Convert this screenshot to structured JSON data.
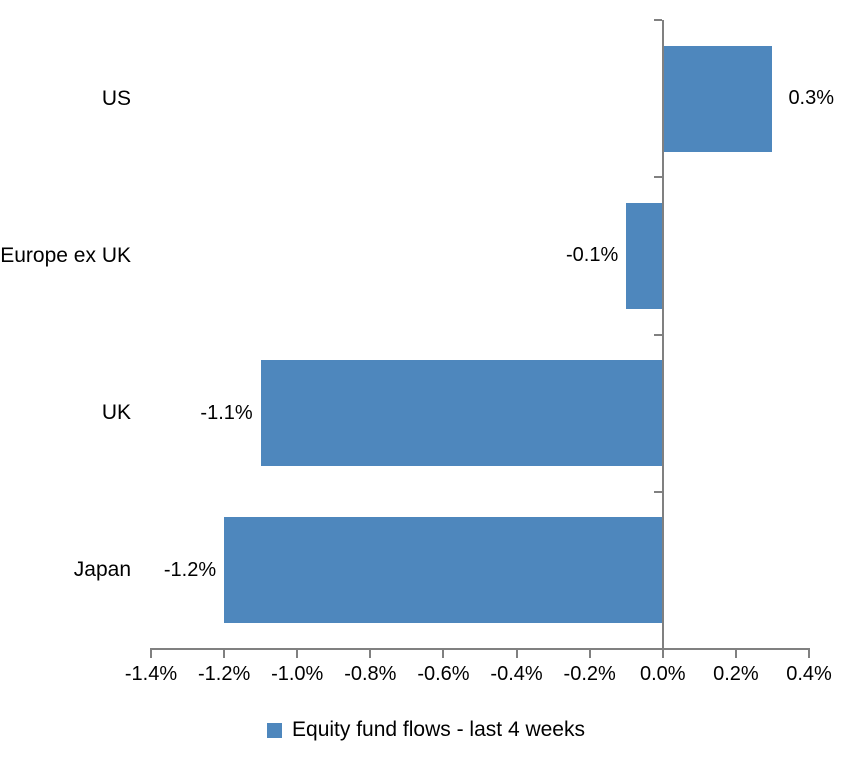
{
  "chart_data": {
    "type": "bar",
    "orientation": "horizontal",
    "title": "",
    "categories": [
      "US",
      "Europe ex UK",
      "UK",
      "Japan"
    ],
    "values": [
      0.3,
      -0.1,
      -1.1,
      -1.2
    ],
    "value_labels": [
      "0.3%",
      "-0.1%",
      "-1.1%",
      "-1.2%"
    ],
    "series_name": "Equity fund flows - last 4 weeks",
    "xlim": [
      -1.4,
      0.4
    ],
    "x_tick_values": [
      -1.4,
      -1.2,
      -1.0,
      -0.8,
      -0.6,
      -0.4,
      -0.2,
      0.0,
      0.2,
      0.4
    ],
    "x_tick_labels": [
      "-1.4%",
      "-1.2%",
      "-1.0%",
      "-0.8%",
      "-0.6%",
      "-0.4%",
      "-0.2%",
      "0.0%",
      "0.2%",
      "0.4%"
    ],
    "grid": false,
    "legend_position": "bottom",
    "legend": [
      {
        "label": "Equity fund flows - last 4 weeks",
        "color": "#4E87BD"
      }
    ],
    "colors": {
      "bar": "#4E87BD",
      "axis": "#808080",
      "text": "#000000",
      "background": "#FFFFFF"
    }
  }
}
